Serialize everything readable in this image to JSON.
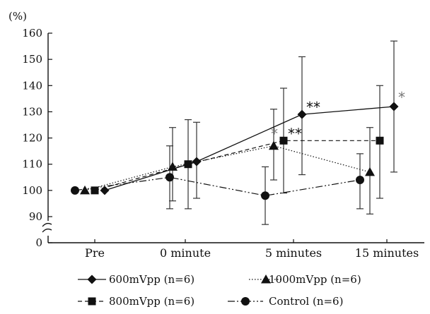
{
  "chart_data": {
    "type": "line",
    "ylabel": "(%)",
    "categories": [
      "Pre",
      "0 minute",
      "5 minutes",
      "15 minutes"
    ],
    "y_ticks": [
      "0",
      "90",
      "100",
      "110",
      "120",
      "130",
      "140",
      "150",
      "160"
    ],
    "ylim": [
      90,
      160
    ],
    "axis_break": true,
    "grid": false,
    "legend_position": "bottom",
    "series": [
      {
        "name": "600mVpp (n=6)",
        "marker": "diamond",
        "line": "solid",
        "color": "#111111",
        "values": [
          100,
          111,
          129,
          132
        ],
        "error_low": [
          null,
          97,
          106,
          107
        ],
        "error_high": [
          null,
          126,
          151,
          157
        ]
      },
      {
        "name": "1000mVpp (n=6)",
        "marker": "triangle",
        "line": "dotted",
        "color": "#111111",
        "values": [
          100,
          109,
          117,
          107
        ],
        "error_low": [
          null,
          96,
          104,
          91
        ],
        "error_high": [
          null,
          124,
          131,
          124
        ]
      },
      {
        "name": "800mVpp (n=6)",
        "marker": "square",
        "line": "dashed",
        "color": "#111111",
        "values": [
          100,
          110,
          119,
          119
        ],
        "error_low": [
          null,
          93,
          99,
          97
        ],
        "error_high": [
          null,
          127,
          139,
          140
        ]
      },
      {
        "name": "Control (n=6)",
        "marker": "circle",
        "line": "dashdotdot",
        "color": "#111111",
        "values": [
          100,
          105,
          98,
          104
        ],
        "error_low": [
          null,
          93,
          87,
          93
        ],
        "error_high": [
          null,
          117,
          109,
          114
        ]
      }
    ],
    "annotations": [
      {
        "text": "**",
        "series": "600mVpp (n=6)",
        "category": "5 minutes"
      },
      {
        "text": "*",
        "series": "600mVpp (n=6)",
        "category": "15 minutes"
      },
      {
        "text": "*",
        "series": "1000mVpp (n=6)",
        "category": "5 minutes"
      },
      {
        "text": "**",
        "series": "800mVpp (n=6)",
        "category": "5 minutes"
      }
    ]
  }
}
